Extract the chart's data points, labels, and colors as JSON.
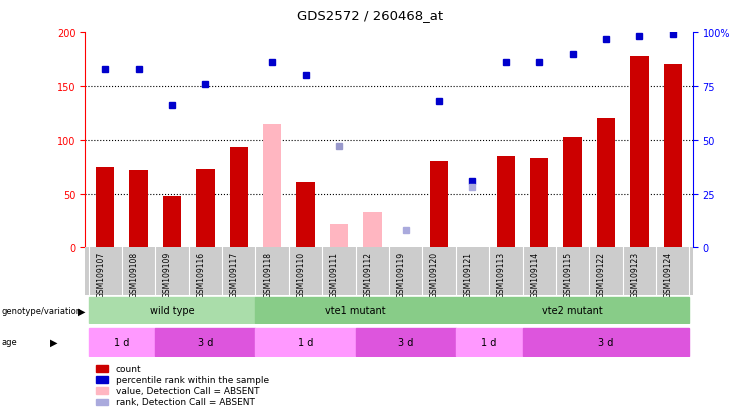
{
  "title": "GDS2572 / 260468_at",
  "samples": [
    "GSM109107",
    "GSM109108",
    "GSM109109",
    "GSM109116",
    "GSM109117",
    "GSM109118",
    "GSM109110",
    "GSM109111",
    "GSM109112",
    "GSM109119",
    "GSM109120",
    "GSM109121",
    "GSM109113",
    "GSM109114",
    "GSM109115",
    "GSM109122",
    "GSM109123",
    "GSM109124"
  ],
  "count_values": [
    75,
    72,
    48,
    73,
    93,
    null,
    61,
    null,
    null,
    null,
    80,
    null,
    85,
    83,
    103,
    120,
    178,
    170
  ],
  "count_absent": [
    null,
    null,
    null,
    null,
    null,
    115,
    null,
    22,
    33,
    null,
    null,
    null,
    null,
    null,
    null,
    null,
    null,
    null
  ],
  "percentile_values": [
    83,
    83,
    66,
    76,
    null,
    86,
    80,
    null,
    null,
    null,
    68,
    31,
    86,
    86,
    90,
    97,
    98,
    99
  ],
  "percentile_absent": [
    null,
    null,
    null,
    null,
    null,
    null,
    null,
    47,
    null,
    null,
    null,
    null,
    null,
    null,
    null,
    null,
    null,
    null
  ],
  "rank_absent": [
    null,
    null,
    null,
    null,
    null,
    null,
    null,
    null,
    null,
    8,
    null,
    28,
    null,
    null,
    null,
    null,
    null,
    null
  ],
  "left_ylim": [
    0,
    200
  ],
  "right_ylim": [
    0,
    100
  ],
  "left_yticks": [
    0,
    50,
    100,
    150,
    200
  ],
  "right_yticks": [
    0,
    25,
    50,
    75,
    100
  ],
  "right_yticklabels": [
    "0",
    "25",
    "50",
    "75",
    "100%"
  ],
  "bar_color": "#CC0000",
  "absent_bar_color": "#FFB6C1",
  "percentile_color": "#0000CC",
  "percentile_absent_color": "#9999CC",
  "rank_absent_color": "#AAAADD",
  "background_color": "#FFFFFF",
  "geno_data": [
    [
      0,
      4,
      "wild type",
      "#AADDAA"
    ],
    [
      5,
      10,
      "vte1 mutant",
      "#88CC88"
    ],
    [
      11,
      17,
      "vte2 mutant",
      "#88CC88"
    ]
  ],
  "age_data": [
    [
      0,
      1,
      "1 d",
      "#FF99FF"
    ],
    [
      2,
      4,
      "3 d",
      "#DD55DD"
    ],
    [
      5,
      7,
      "1 d",
      "#FF99FF"
    ],
    [
      8,
      10,
      "3 d",
      "#DD55DD"
    ],
    [
      11,
      12,
      "1 d",
      "#FF99FF"
    ],
    [
      13,
      17,
      "3 d",
      "#DD55DD"
    ]
  ],
  "legend_items": [
    [
      "#CC0000",
      "count"
    ],
    [
      "#0000CC",
      "percentile rank within the sample"
    ],
    [
      "#FFB6C1",
      "value, Detection Call = ABSENT"
    ],
    [
      "#AAAADD",
      "rank, Detection Call = ABSENT"
    ]
  ]
}
